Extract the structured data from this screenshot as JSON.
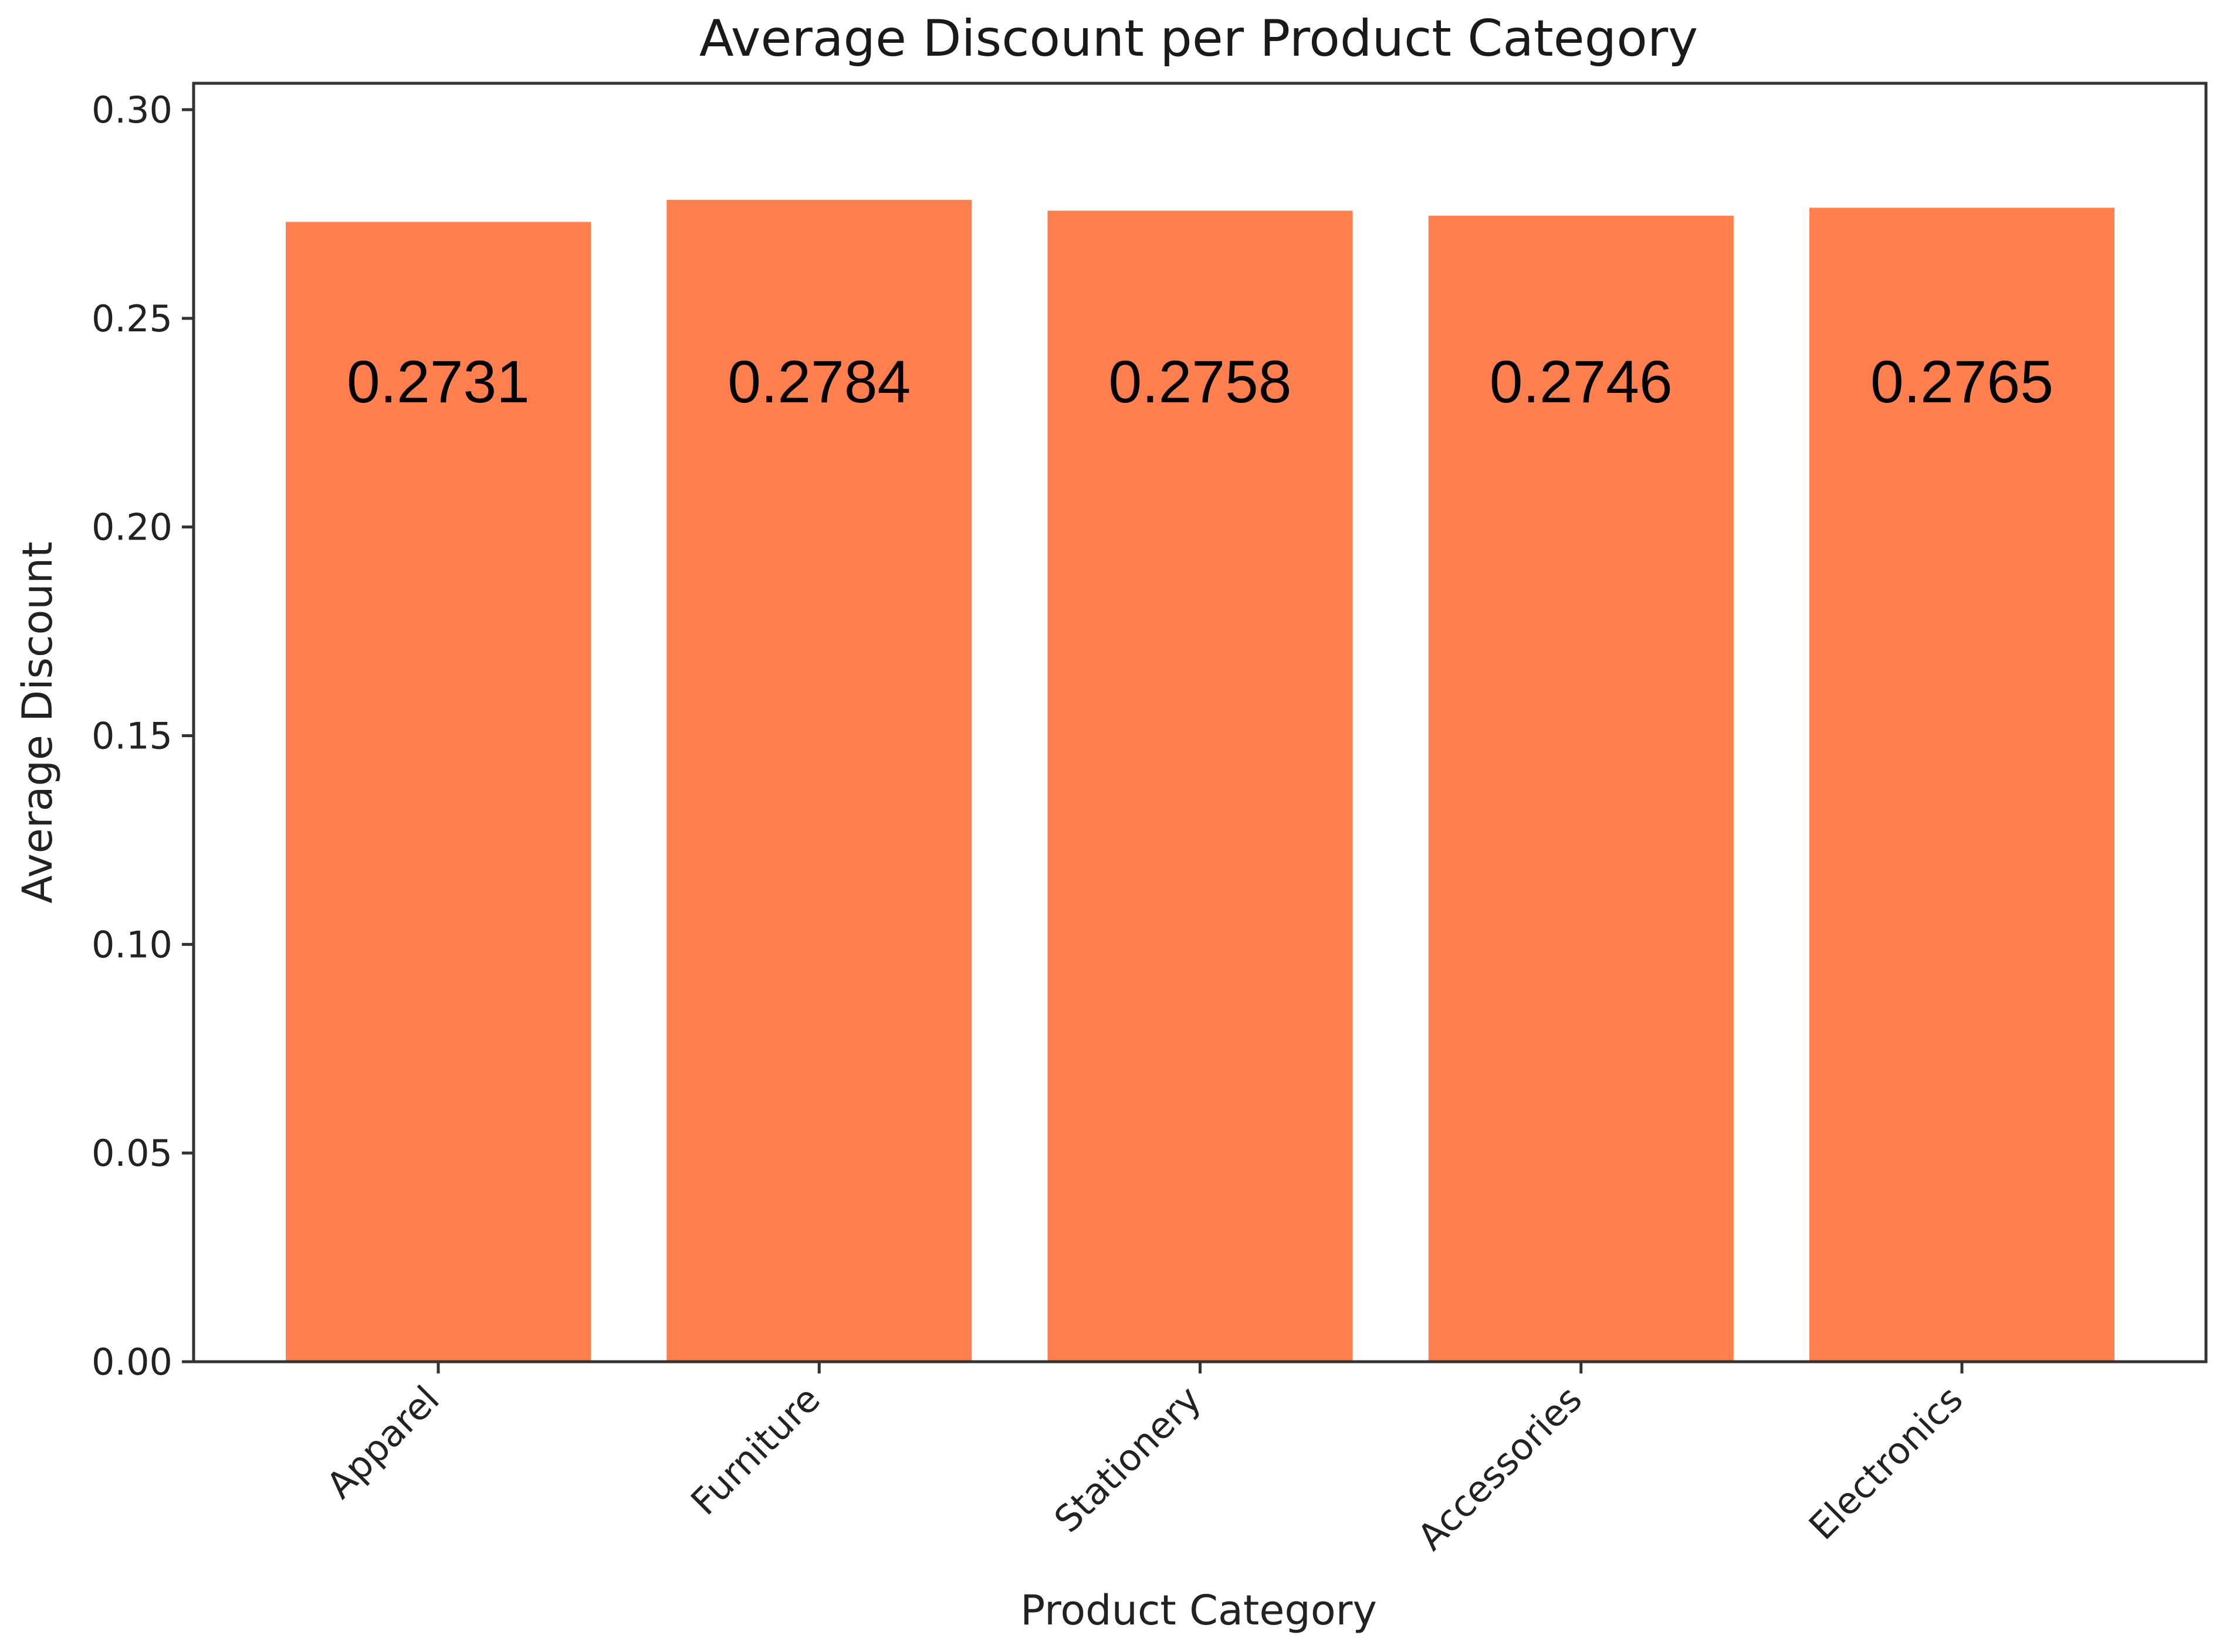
{
  "chart_data": {
    "type": "bar",
    "title": "Average Discount per Product Category",
    "xlabel": "Product Category",
    "ylabel": "Average Discount",
    "categories": [
      "Apparel",
      "Furniture",
      "Stationery",
      "Accessories",
      "Electronics"
    ],
    "values": [
      0.2731,
      0.2784,
      0.2758,
      0.2746,
      0.2765
    ],
    "value_labels": [
      "0.2731",
      "0.2784",
      "0.2758",
      "0.2746",
      "0.2765"
    ],
    "yticks": [
      "0.00",
      "0.05",
      "0.10",
      "0.15",
      "0.20",
      "0.25",
      "0.30"
    ],
    "ytick_values": [
      0,
      0.05,
      0.1,
      0.15,
      0.2,
      0.25,
      0.3
    ],
    "ylim": [
      0,
      0.3
    ],
    "grid": false,
    "legend": "none",
    "bar_color": "#ff7f4e"
  }
}
